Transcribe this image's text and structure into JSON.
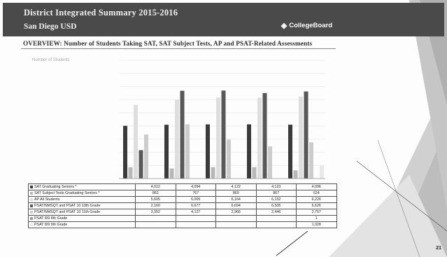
{
  "header": {
    "title": "District Integrated Summary 2015-2016",
    "subtitle": "San Diego USD",
    "logo_text": "CollegeBoard",
    "logo_icon": "acorn-icon"
  },
  "overview_title": "OVERVIEW: Number of Students Taking SAT, SAT Subject Tests, AP and PSAT-Related Assessments",
  "page_number": "21",
  "colors": {
    "header_bg": "#4a4a4a",
    "series": [
      "#3a3a3a",
      "#b8b8b8",
      "#dedede",
      "#585858",
      "#cccccc",
      "#9a9a9a",
      "#e9e9e9"
    ]
  },
  "chart_data": {
    "type": "bar",
    "ylabel": "Number of Students",
    "categories": [
      "",
      "",
      "",
      "",
      ""
    ],
    "ylim": [
      0,
      9000
    ],
    "grid": true,
    "legend": "table-below",
    "series": [
      {
        "name": "SAT Graduating Seniors *",
        "values": [
          4012,
          4094,
          4122,
          4123,
          4096
        ],
        "labels": [
          "4,012",
          "4,094",
          "4,122",
          "4,123",
          "4,096"
        ]
      },
      {
        "name": "SAT Subject Tests Graduating Seniors *",
        "values": [
          862,
          767,
          869,
          867,
          624
        ],
        "labels": [
          "862",
          "767",
          "869",
          "867",
          "624"
        ]
      },
      {
        "name": "AP All Students",
        "values": [
          5605,
          6005,
          6164,
          6152,
          6226
        ],
        "labels": [
          "5,605",
          "6,005",
          "6,164",
          "6,152",
          "6,226"
        ]
      },
      {
        "name": "PSAT/NMSQT and PSAT 10   10th Grade",
        "values": [
          2160,
          6677,
          6694,
          6505,
          6626
        ],
        "labels": [
          "2,160",
          "6,677",
          "6,694",
          "6,505",
          "6,626"
        ]
      },
      {
        "name": "PSAT/NMSQT and PSAT 10   11th Grade",
        "values": [
          3352,
          4127,
          2966,
          2446,
          2757
        ],
        "labels": [
          "3,352",
          "4,127",
          "2,966",
          "2,446",
          "2,757"
        ]
      },
      {
        "name": "PSAT 8/9   8th Grade",
        "values": [
          null,
          null,
          null,
          null,
          1
        ],
        "labels": [
          "",
          "",
          "",
          "",
          "1"
        ]
      },
      {
        "name": "PSAT 8/9   9th Grade",
        "values": [
          null,
          null,
          null,
          null,
          1028
        ],
        "labels": [
          "",
          "",
          "",
          "",
          "1,028"
        ]
      }
    ]
  }
}
